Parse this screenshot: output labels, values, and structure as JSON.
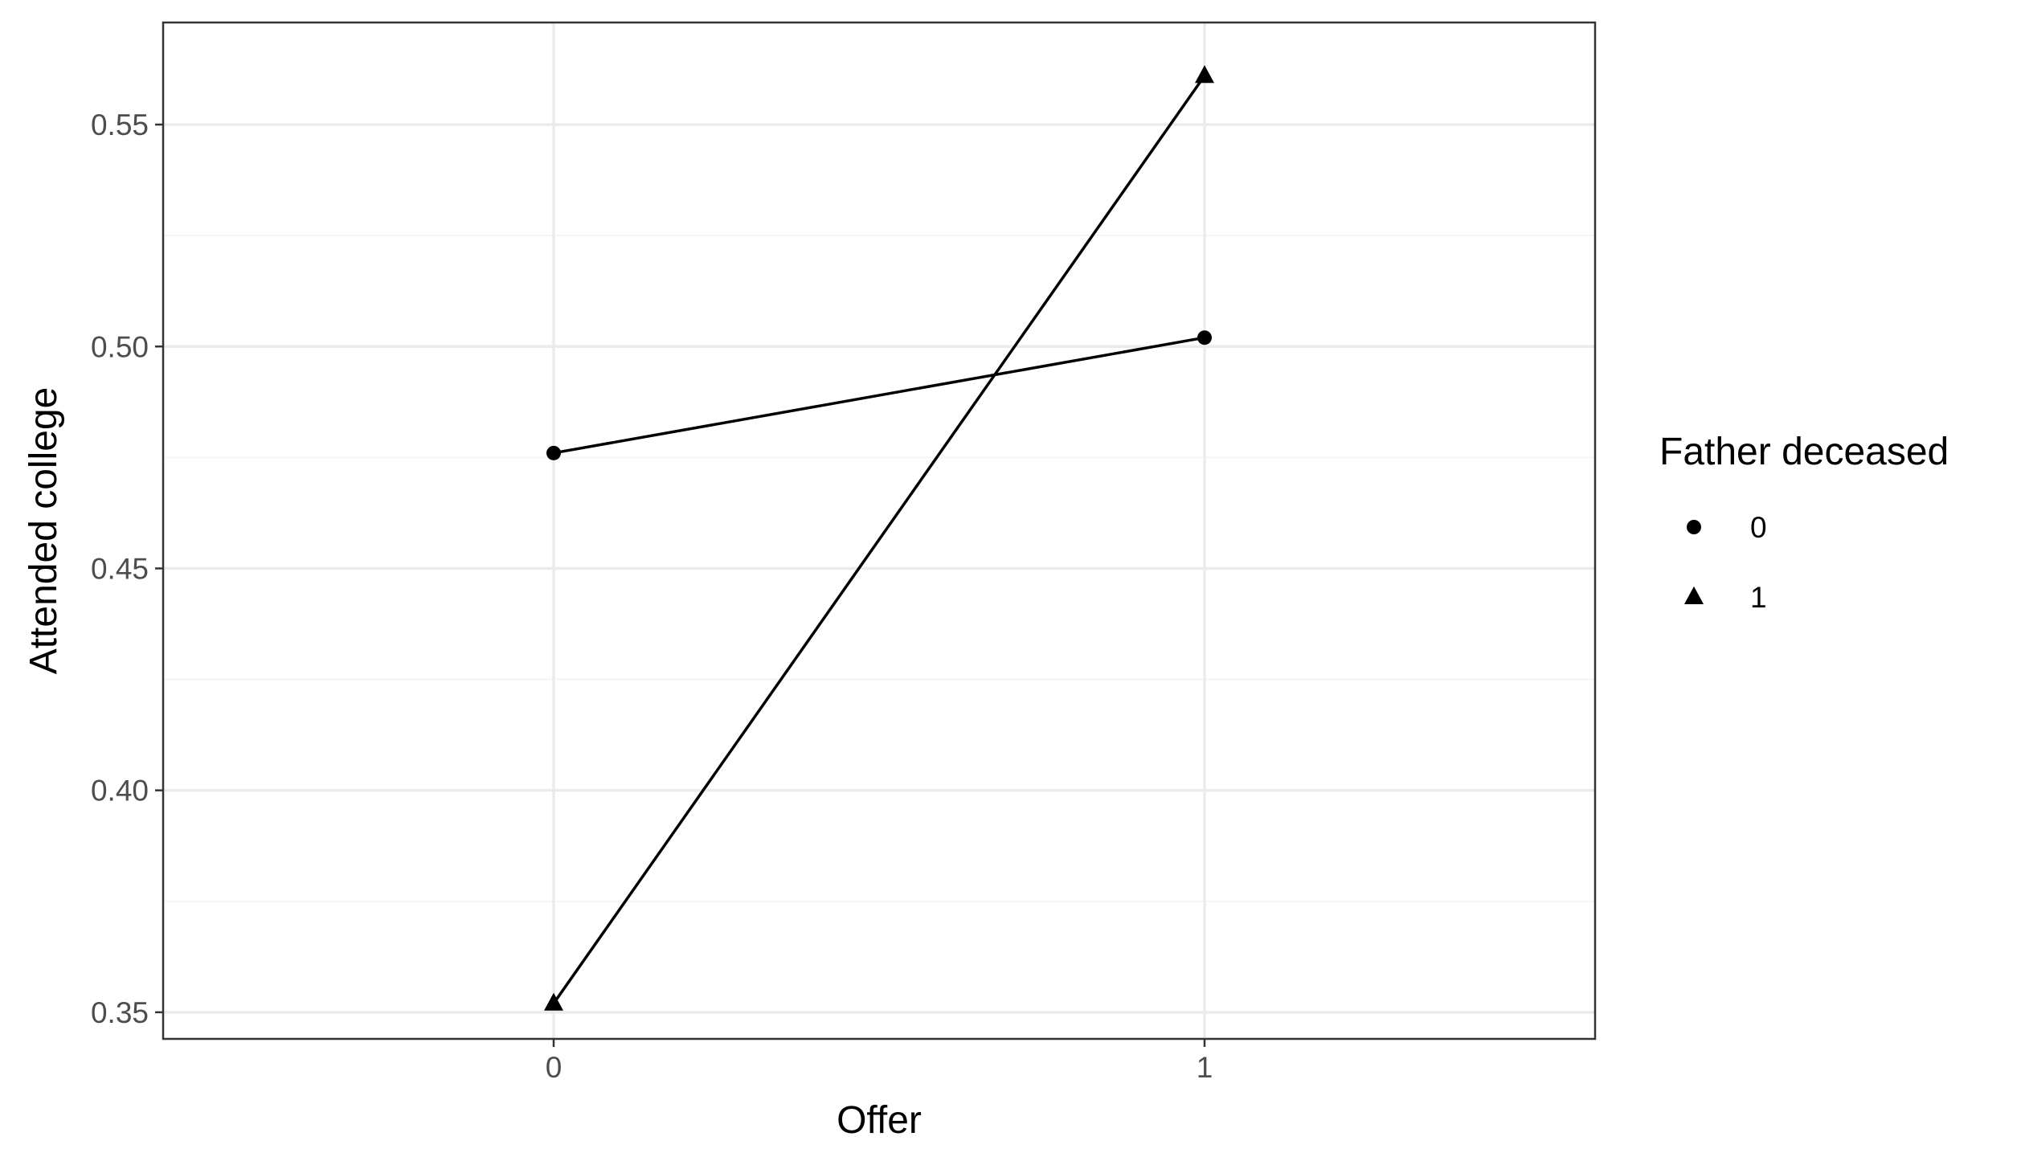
{
  "chart_data": {
    "type": "line",
    "title": "",
    "xlabel": "Offer",
    "ylabel": "Attended college",
    "categories": [
      "0",
      "1"
    ],
    "y_ticks": [
      "0.35",
      "0.40",
      "0.45",
      "0.50",
      "0.55"
    ],
    "ylim": [
      0.344,
      0.573
    ],
    "grid": true,
    "legend": {
      "title": "Father deceased",
      "placement": "right"
    },
    "series": [
      {
        "name": "0",
        "marker": "circle",
        "values": [
          0.476,
          0.502
        ]
      },
      {
        "name": "1",
        "marker": "triangle",
        "values": [
          0.352,
          0.561
        ]
      }
    ],
    "colors": {
      "line": "#000000",
      "major_grid": "#ebebeb",
      "minor_grid": "#f5f5f5",
      "panel_border": "#333333",
      "tick_text": "#4d4d4d"
    }
  }
}
